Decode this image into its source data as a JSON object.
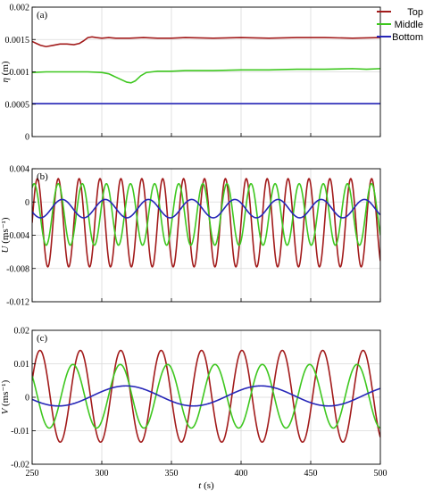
{
  "colors": {
    "top": "#a21b1b",
    "middle": "#3ec71f",
    "bottom": "#2626b8",
    "grid": "#d9d9d9"
  },
  "legend": [
    "Top",
    "Middle",
    "Bottom"
  ],
  "chart_data": [
    {
      "type": "line",
      "panel": "(a)",
      "ylabel_sym": "η",
      "ylabel_unit": "(m)",
      "xlim": [
        250,
        500
      ],
      "ylim": [
        0,
        0.002
      ],
      "yticks": [
        "0",
        "0.0005",
        "0.001",
        "0.0015",
        "0.002"
      ],
      "yticks_values": [
        0,
        0.0005,
        0.001,
        0.0015,
        0.002
      ],
      "grid": true,
      "legend_position": "top-right",
      "series": [
        {
          "name": "Top",
          "key": "top",
          "x": [
            250,
            253,
            256,
            260,
            265,
            270,
            275,
            280,
            284,
            287,
            290,
            293,
            296,
            300,
            305,
            310,
            320,
            330,
            340,
            350,
            360,
            380,
            400,
            420,
            440,
            460,
            480,
            500
          ],
          "y": [
            0.00147,
            0.00144,
            0.00141,
            0.00139,
            0.00141,
            0.00143,
            0.00143,
            0.00142,
            0.00144,
            0.00148,
            0.00153,
            0.00154,
            0.00153,
            0.00152,
            0.00153,
            0.00152,
            0.00152,
            0.00153,
            0.00152,
            0.00152,
            0.00153,
            0.00152,
            0.00153,
            0.00152,
            0.00153,
            0.00153,
            0.00152,
            0.00153
          ]
        },
        {
          "name": "Middle",
          "key": "middle",
          "x": [
            250,
            260,
            270,
            280,
            290,
            300,
            305,
            310,
            315,
            318,
            321,
            324,
            328,
            332,
            336,
            340,
            350,
            360,
            380,
            400,
            420,
            440,
            460,
            480,
            490,
            500
          ],
          "y": [
            0.00099,
            0.001,
            0.001,
            0.001,
            0.001,
            0.00099,
            0.00097,
            0.00092,
            0.00087,
            0.00084,
            0.00083,
            0.00086,
            0.00094,
            0.00099,
            0.001,
            0.00101,
            0.00101,
            0.00102,
            0.00102,
            0.00103,
            0.00103,
            0.00104,
            0.00104,
            0.00105,
            0.00104,
            0.00105
          ]
        },
        {
          "name": "Bottom",
          "key": "bottom",
          "x": [
            250,
            300,
            350,
            400,
            450,
            500
          ],
          "y": [
            0.00051,
            0.00051,
            0.00051,
            0.00051,
            0.00051,
            0.00051
          ]
        }
      ]
    },
    {
      "type": "line",
      "panel": "(b)",
      "ylabel_sym": "U",
      "ylabel_unit": "(ms⁻¹)",
      "xlim": [
        250,
        500
      ],
      "ylim": [
        -0.012,
        0.004
      ],
      "yticks": [
        "-0.012",
        "-0.008",
        "-0.004",
        "0",
        "0.004"
      ],
      "yticks_values": [
        -0.012,
        -0.008,
        -0.004,
        0,
        0.004
      ],
      "grid": true,
      "series": [
        {
          "name": "Top",
          "key": "top",
          "mean": -0.0025,
          "amplitude": 0.0053,
          "period": 15,
          "phase_deg": 0,
          "from": 250,
          "to": 500
        },
        {
          "name": "Middle",
          "key": "middle",
          "mean": -0.0015,
          "amplitude": 0.0037,
          "period": 17.3,
          "phase_deg": 60,
          "from": 250,
          "to": 500
        },
        {
          "name": "Bottom",
          "key": "bottom",
          "mean": -0.0008,
          "amplitude": 0.0011,
          "period": 31,
          "phase_deg": 200,
          "from": 250,
          "to": 500
        }
      ]
    },
    {
      "type": "line",
      "panel": "(c)",
      "ylabel_sym": "V",
      "ylabel_unit": "(ms⁻¹)",
      "xlabel_sym": "t",
      "xlabel_unit": "(s)",
      "xlim": [
        250,
        500
      ],
      "ylim": [
        -0.02,
        0.02
      ],
      "yticks": [
        "-0.02",
        "-0.01",
        "0",
        "0.01",
        "0.02"
      ],
      "yticks_values": [
        -0.02,
        -0.01,
        0,
        0.01,
        0.02
      ],
      "xticks": [
        "250",
        "300",
        "350",
        "400",
        "450",
        "500"
      ],
      "xticks_values": [
        250,
        300,
        350,
        400,
        450,
        500
      ],
      "grid": true,
      "series": [
        {
          "name": "Top",
          "key": "top",
          "mean": 0.0003,
          "amplitude": 0.0137,
          "period": 29,
          "phase_deg": 20,
          "from": 250,
          "to": 500
        },
        {
          "name": "Middle",
          "key": "middle",
          "mean": 0.0003,
          "amplitude": 0.0095,
          "period": 34,
          "phase_deg": 140,
          "from": 250,
          "to": 500
        },
        {
          "name": "Bottom",
          "key": "bottom",
          "mean": 0.0004,
          "amplitude": 0.003,
          "period": 97,
          "phase_deg": 200,
          "from": 250,
          "to": 500
        }
      ]
    }
  ]
}
